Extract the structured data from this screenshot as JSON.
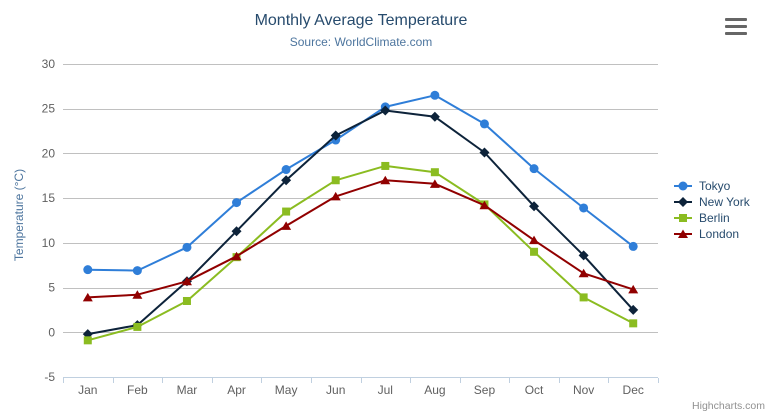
{
  "chart_data": {
    "type": "line",
    "title": "Monthly Average Temperature",
    "subtitle": "Source: WorldClimate.com",
    "xlabel": "",
    "ylabel": "Temperature (°C)",
    "categories": [
      "Jan",
      "Feb",
      "Mar",
      "Apr",
      "May",
      "Jun",
      "Jul",
      "Aug",
      "Sep",
      "Oct",
      "Nov",
      "Dec"
    ],
    "ylim": [
      -5,
      30
    ],
    "yticks": [
      -5,
      0,
      5,
      10,
      15,
      20,
      25,
      30
    ],
    "grid": true,
    "legend_position": "right",
    "credits": "Highcharts.com",
    "series": [
      {
        "name": "Tokyo",
        "color": "#2f7ed8",
        "marker": "circle",
        "values": [
          7.0,
          6.9,
          9.5,
          14.5,
          18.2,
          21.5,
          25.2,
          26.5,
          23.3,
          18.3,
          13.9,
          9.6
        ]
      },
      {
        "name": "New York",
        "color": "#0d233a",
        "marker": "diamond",
        "values": [
          -0.2,
          0.8,
          5.7,
          11.3,
          17.0,
          22.0,
          24.8,
          24.1,
          20.1,
          14.1,
          8.6,
          2.5
        ]
      },
      {
        "name": "Berlin",
        "color": "#8bbc21",
        "marker": "square",
        "values": [
          -0.9,
          0.6,
          3.5,
          8.4,
          13.5,
          17.0,
          18.6,
          17.9,
          14.3,
          9.0,
          3.9,
          1.0
        ]
      },
      {
        "name": "London",
        "color": "#910000",
        "marker": "triangle",
        "values": [
          3.9,
          4.2,
          5.7,
          8.5,
          11.9,
          15.2,
          17.0,
          16.6,
          14.2,
          10.3,
          6.6,
          4.8
        ]
      }
    ]
  },
  "styles": {
    "title_color": "#274b6d",
    "subtitle_color": "#4d759e",
    "axis_label_color": "#606060",
    "gridline_color": "#C0C0C0",
    "axis_line_color": "#C0D0E0",
    "legend_text_color": "#274b6d",
    "credits_color": "#909090"
  }
}
